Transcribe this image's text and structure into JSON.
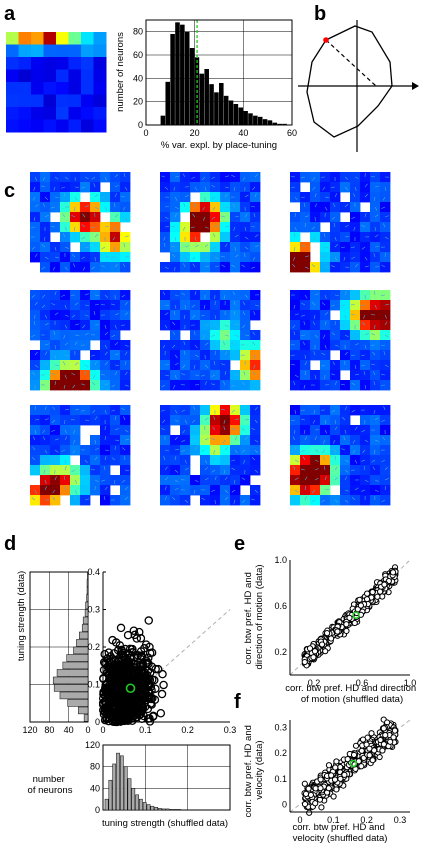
{
  "figure": {
    "panel_labels": [
      "a",
      "b",
      "c",
      "d",
      "e",
      "f"
    ]
  },
  "colors": {
    "bar_fill": "#000000",
    "marker_highlight": "#22cc22",
    "dashed_vline": "#22cc22",
    "diagonal": "#b0b0b0",
    "hist_gray": "#aaaaaa",
    "polar_red": "#ff0000"
  },
  "chart_data": [
    {
      "id": "a-hist",
      "type": "bar",
      "xlabel": "% var. expl. by place-tuning",
      "ylabel": "number of neurons",
      "xlim": [
        0,
        60
      ],
      "ylim": [
        0,
        90
      ],
      "xticks": [
        0,
        20,
        40,
        60
      ],
      "yticks": [
        0,
        20,
        40,
        60,
        80
      ],
      "grid": true,
      "bin_width": 2,
      "bin_starts": [
        6,
        8,
        10,
        12,
        14,
        16,
        18,
        20,
        22,
        24,
        26,
        28,
        30,
        32,
        34,
        36,
        38,
        40,
        42,
        44,
        46,
        48,
        50,
        52,
        54,
        56
      ],
      "values": [
        8,
        37,
        78,
        88,
        86,
        80,
        66,
        58,
        44,
        48,
        35,
        28,
        36,
        25,
        21,
        18,
        15,
        12,
        10,
        8,
        7,
        5,
        4,
        2,
        1,
        1
      ],
      "dashed_line_x": 21
    },
    {
      "id": "d-scatter",
      "type": "scatter",
      "ylabel": "tuning strength (data)",
      "xlim": [
        0,
        0.3
      ],
      "ylim": [
        0,
        0.4
      ],
      "xticks": [
        "0",
        "0.1",
        "0.2",
        "0.3"
      ],
      "yticks": [
        "0",
        "0.1",
        "0.2",
        "0.3",
        "0.4"
      ],
      "highlight_point": [
        0.065,
        0.09
      ]
    },
    {
      "id": "d-left-hist",
      "type": "bar",
      "orientation": "horizontal",
      "xlabel": "number\nof neurons",
      "xticks": [
        "120",
        "80",
        "40",
        "0"
      ],
      "values": [
        8,
        20,
        42,
        58,
        70,
        72,
        64,
        52,
        44,
        30,
        24,
        18,
        12,
        10,
        6,
        5,
        3,
        2,
        2,
        1
      ]
    },
    {
      "id": "d-bottom-hist",
      "type": "bar",
      "xlabel": "tuning strength (shuffled data)",
      "ylim": [
        0,
        120
      ],
      "yticks": [
        "0",
        "40",
        "80",
        "120"
      ],
      "values": [
        20,
        55,
        85,
        105,
        100,
        80,
        58,
        40,
        28,
        20,
        14,
        10,
        7,
        5,
        3,
        2,
        2,
        1,
        1,
        1
      ]
    },
    {
      "id": "e-scatter",
      "type": "scatter",
      "ylabel": "corr. btw pref. HD and\ndirection of motion (data)",
      "xlabel": "corr. btw pref. HD and direction\nof motion (shuffled data)",
      "xlim": [
        0,
        1.0
      ],
      "ylim": [
        0,
        1.0
      ],
      "xticks": [
        "0.2",
        "0.6",
        "1.0"
      ],
      "yticks": [
        "0.2",
        "0.6",
        "1.0"
      ],
      "highlight_point": [
        0.55,
        0.52
      ]
    },
    {
      "id": "f-scatter",
      "type": "scatter",
      "ylabel": "corr. btw pref. HD and\nvelocity (data)",
      "xlabel": "corr. btw pref. HD and\nvelocity (shuffled data)",
      "xlim": [
        -0.03,
        0.33
      ],
      "ylim": [
        -0.03,
        0.33
      ],
      "xticks": [
        "0",
        "0.1",
        "0.2",
        "0.3"
      ],
      "yticks": [
        "0",
        "0.1",
        "0.2",
        "0.3"
      ],
      "highlight_point": [
        0.16,
        0.16
      ]
    }
  ]
}
